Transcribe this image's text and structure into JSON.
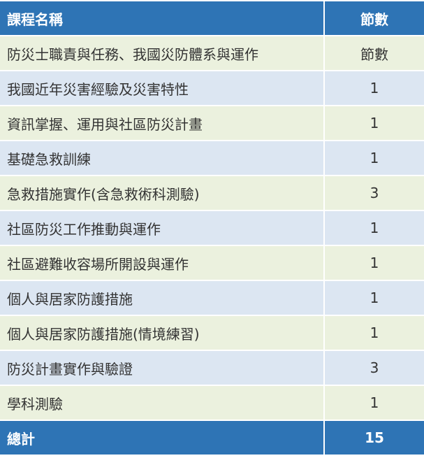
{
  "table": {
    "header": [
      "課程名稱",
      "節數"
    ],
    "rows": [
      [
        "防災士職責與任務、我國災防體系與運作",
        "節數"
      ],
      [
        "我國近年災害經驗及災害特性",
        1
      ],
      [
        "資訊掌握、運用與社區防災計畫",
        1
      ],
      [
        "基礎急救訓練",
        1
      ],
      [
        "急救措施實作(含急救術科測驗)",
        3
      ],
      [
        "社區防災工作推動與運作",
        1
      ],
      [
        "社區避難收容場所開設與運作",
        1
      ],
      [
        "個人與居家防護措施",
        1
      ],
      [
        "個人與居家防護措施(情境練習)",
        1
      ],
      [
        "防災計畫實作與驗證",
        3
      ],
      [
        "學科測驗",
        1
      ]
    ],
    "footer": [
      "總計",
      15
    ]
  }
}
